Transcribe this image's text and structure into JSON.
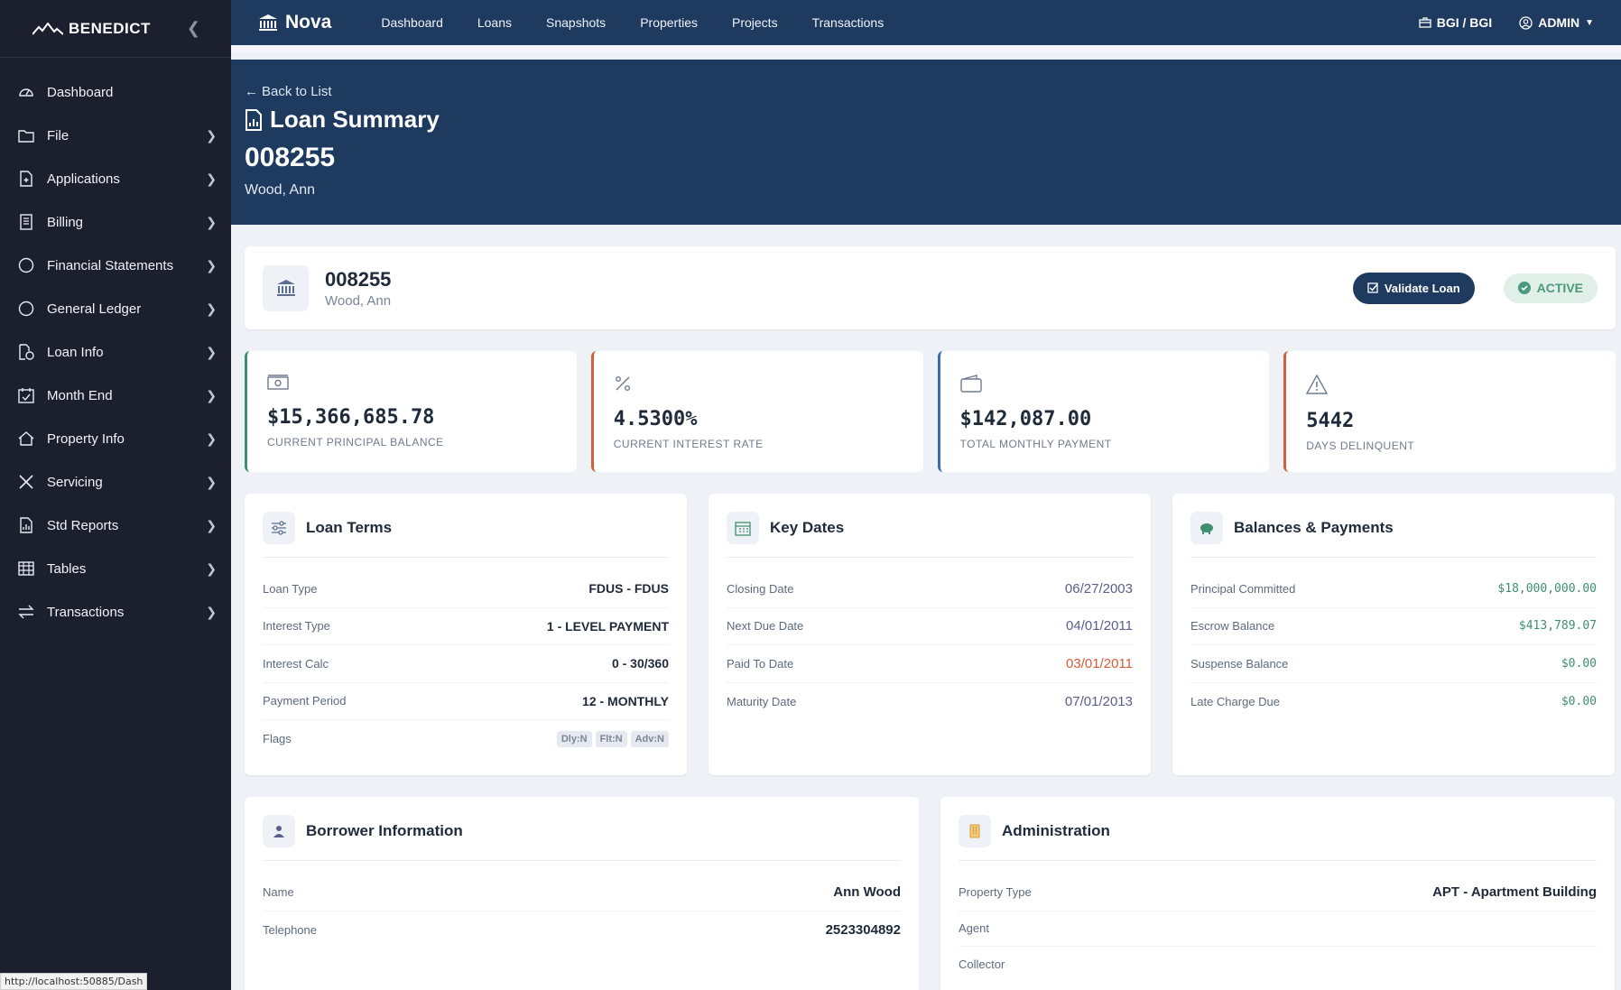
{
  "sidebar": {
    "brand": "BENEDICT",
    "items": [
      {
        "label": "Dashboard",
        "icon": "gauge-icon",
        "chevron": false
      },
      {
        "label": "File",
        "icon": "folder-icon",
        "chevron": true
      },
      {
        "label": "Applications",
        "icon": "file-plus-icon",
        "chevron": true
      },
      {
        "label": "Billing",
        "icon": "receipt-icon",
        "chevron": true
      },
      {
        "label": "Financial Statements",
        "icon": "circle-icon",
        "chevron": true
      },
      {
        "label": "General Ledger",
        "icon": "circle-icon",
        "chevron": true
      },
      {
        "label": "Loan Info",
        "icon": "file-dollar-icon",
        "chevron": true
      },
      {
        "label": "Month End",
        "icon": "calendar-check-icon",
        "chevron": true
      },
      {
        "label": "Property Info",
        "icon": "house-icon",
        "chevron": true
      },
      {
        "label": "Servicing",
        "icon": "tools-icon",
        "chevron": true
      },
      {
        "label": "Std Reports",
        "icon": "report-icon",
        "chevron": true
      },
      {
        "label": "Tables",
        "icon": "table-icon",
        "chevron": true
      },
      {
        "label": "Transactions",
        "icon": "arrows-icon",
        "chevron": true
      }
    ],
    "status_url": "http://localhost:50885/Dash"
  },
  "topbar": {
    "app_name": "Nova",
    "nav": [
      "Dashboard",
      "Loans",
      "Snapshots",
      "Properties",
      "Projects",
      "Transactions"
    ],
    "org": "BGI / BGI",
    "user": "ADMIN"
  },
  "hero": {
    "back": "Back to List",
    "title": "Loan Summary",
    "loan_number": "008255",
    "borrower": "Wood, Ann"
  },
  "summary": {
    "loan_number": "008255",
    "borrower": "Wood, Ann",
    "validate_label": "Validate Loan",
    "status": "ACTIVE"
  },
  "metrics": [
    {
      "value": "$15,366,685.78",
      "label": "CURRENT PRINCIPAL BALANCE",
      "icon": "cash-icon",
      "color": "#3f8f6e"
    },
    {
      "value": "4.5300%",
      "label": "CURRENT INTEREST RATE",
      "icon": "percent-icon",
      "color": "#d35d3c"
    },
    {
      "value": "$142,087.00",
      "label": "TOTAL MONTHLY PAYMENT",
      "icon": "wallet-icon",
      "color": "#3b6fa8"
    },
    {
      "value": "5442",
      "label": "DAYS DELINQUENT",
      "icon": "warning-icon",
      "color": "#d35d3c"
    }
  ],
  "loan_terms": {
    "title": "Loan Terms",
    "rows": [
      {
        "k": "Loan Type",
        "v": "FDUS - FDUS"
      },
      {
        "k": "Interest Type",
        "v": "1 - LEVEL PAYMENT"
      },
      {
        "k": "Interest Calc",
        "v": "0 - 30/360"
      },
      {
        "k": "Payment Period",
        "v": "12 - MONTHLY"
      }
    ],
    "flags_label": "Flags",
    "flags": [
      "Dly:N",
      "Flt:N",
      "Adv:N"
    ]
  },
  "key_dates": {
    "title": "Key Dates",
    "rows": [
      {
        "k": "Closing Date",
        "v": "06/27/2003"
      },
      {
        "k": "Next Due Date",
        "v": "04/01/2011"
      },
      {
        "k": "Paid To Date",
        "v": "03/01/2011"
      },
      {
        "k": "Maturity Date",
        "v": "07/01/2013"
      }
    ]
  },
  "balances": {
    "title": "Balances & Payments",
    "rows": [
      {
        "k": "Principal Committed",
        "v": "$18,000,000.00"
      },
      {
        "k": "Escrow Balance",
        "v": "$413,789.07"
      },
      {
        "k": "Suspense Balance",
        "v": "$0.00"
      },
      {
        "k": "Late Charge Due",
        "v": "$0.00"
      }
    ]
  },
  "borrower": {
    "title": "Borrower Information",
    "rows": [
      {
        "k": "Name",
        "v": "Ann Wood"
      },
      {
        "k": "Telephone",
        "v": "2523304892"
      }
    ]
  },
  "administration": {
    "title": "Administration",
    "rows": [
      {
        "k": "Property Type",
        "v": "APT - Apartment Building"
      },
      {
        "k": "Agent",
        "v": ""
      },
      {
        "k": "Collector",
        "v": ""
      }
    ]
  }
}
